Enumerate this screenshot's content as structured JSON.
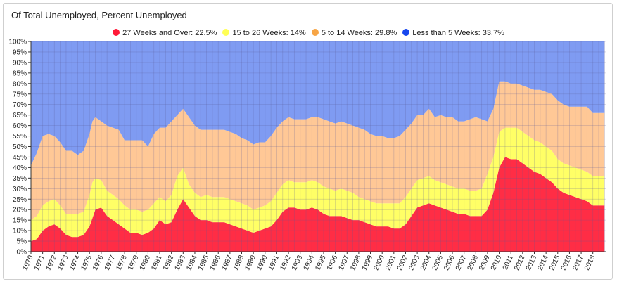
{
  "chart_data": {
    "type": "area",
    "stacked": true,
    "percent_stacked": true,
    "title": "Of Total Unemployed, Percent Unemployed",
    "legend_position": "top-center",
    "grid": true,
    "ylim": [
      0,
      100
    ],
    "y_ticks": [
      "0%",
      "5%",
      "10%",
      "15%",
      "20%",
      "25%",
      "30%",
      "35%",
      "40%",
      "45%",
      "50%",
      "55%",
      "60%",
      "65%",
      "70%",
      "75%",
      "80%",
      "85%",
      "90%",
      "95%",
      "100%"
    ],
    "x_ticks": [
      "1970",
      "1971",
      "1972",
      "1973",
      "1974",
      "1975",
      "1976",
      "1977",
      "1978",
      "1979",
      "1980",
      "1981",
      "1982",
      "1983",
      "1984",
      "1985",
      "1986",
      "1987",
      "1988",
      "1989",
      "1990",
      "1991",
      "1992",
      "1993",
      "1994",
      "1995",
      "1996",
      "1997",
      "1998",
      "1999",
      "2000",
      "2001",
      "2002",
      "2003",
      "2004",
      "2005",
      "2006",
      "2007",
      "2008",
      "2009",
      "2010",
      "2011",
      "2012",
      "2013",
      "2014",
      "2015",
      "2016",
      "2017",
      "2018"
    ],
    "xlim": [
      1970.0,
      2019.1
    ],
    "x": [
      1970.0,
      1970.5,
      1971.0,
      1971.5,
      1972.0,
      1972.5,
      1973.0,
      1973.5,
      1974.0,
      1974.5,
      1975.0,
      1975.25,
      1975.5,
      1976.0,
      1976.5,
      1977.0,
      1977.5,
      1978.0,
      1978.5,
      1979.0,
      1979.5,
      1980.0,
      1980.5,
      1981.0,
      1981.5,
      1982.0,
      1982.5,
      1983.0,
      1983.5,
      1984.0,
      1984.5,
      1985.0,
      1985.5,
      1986.0,
      1986.5,
      1987.0,
      1987.5,
      1988.0,
      1988.5,
      1989.0,
      1989.5,
      1990.0,
      1990.5,
      1991.0,
      1991.5,
      1992.0,
      1992.5,
      1993.0,
      1993.5,
      1994.0,
      1994.5,
      1995.0,
      1995.5,
      1996.0,
      1996.5,
      1997.0,
      1997.5,
      1998.0,
      1998.5,
      1999.0,
      1999.5,
      2000.0,
      2000.5,
      2001.0,
      2001.5,
      2002.0,
      2002.5,
      2003.0,
      2003.5,
      2004.0,
      2004.5,
      2005.0,
      2005.5,
      2006.0,
      2006.5,
      2007.0,
      2007.5,
      2008.0,
      2008.5,
      2009.0,
      2009.5,
      2010.0,
      2010.5,
      2011.0,
      2011.5,
      2012.0,
      2012.5,
      2013.0,
      2013.5,
      2014.0,
      2014.5,
      2015.0,
      2015.5,
      2016.0,
      2016.5,
      2017.0,
      2017.5,
      2018.0,
      2018.5,
      2019.0
    ],
    "series": [
      {
        "name": "27 Weeks and Over",
        "legend_label": "27 Weeks and Over: 22.5%",
        "color": "#ff2d45",
        "values": [
          5,
          6,
          10,
          12,
          13,
          11,
          8,
          7,
          7,
          8,
          12,
          16,
          20,
          21,
          17,
          15,
          13,
          11,
          9,
          9,
          8,
          9,
          11,
          15,
          13,
          14,
          20,
          25,
          21,
          17,
          15,
          15,
          14,
          14,
          14,
          13,
          12,
          11,
          10,
          9,
          10,
          11,
          12,
          15,
          19,
          21,
          21,
          20,
          20,
          21,
          20,
          18,
          17,
          17,
          17,
          16,
          15,
          15,
          14,
          13,
          12,
          12,
          12,
          11,
          11,
          13,
          17,
          21,
          22,
          23,
          22,
          21,
          20,
          19,
          18,
          18,
          17,
          17,
          17,
          20,
          28,
          40,
          45,
          44,
          44,
          42,
          40,
          38,
          37,
          35,
          33,
          30,
          28,
          27,
          26,
          25,
          24,
          22,
          22,
          22
        ]
      },
      {
        "name": "15 to 26 Weeks",
        "legend_label": "15 to 26 Weeks: 14%",
        "color": "#ffff66",
        "values": [
          10,
          11,
          12,
          12,
          12,
          11,
          10,
          11,
          11,
          11,
          15,
          17,
          15,
          13,
          12,
          12,
          12,
          11,
          11,
          11,
          11,
          11,
          12,
          11,
          11,
          13,
          16,
          15,
          11,
          11,
          11,
          12,
          12,
          12,
          12,
          12,
          12,
          12,
          12,
          11,
          11,
          11,
          12,
          13,
          13,
          13,
          12,
          13,
          13,
          13,
          13,
          13,
          13,
          12,
          13,
          13,
          13,
          11,
          11,
          11,
          11,
          11,
          11,
          12,
          12,
          13,
          13,
          13,
          13,
          13,
          12,
          12,
          12,
          12,
          12,
          12,
          12,
          12,
          13,
          17,
          17,
          17,
          14,
          15,
          15,
          15,
          15,
          15,
          15,
          15,
          15,
          14,
          14,
          14,
          14,
          14,
          14,
          14,
          14,
          14
        ]
      },
      {
        "name": "5 to 14 Weeks",
        "legend_label": "5 to 14 Weeks: 29.8%",
        "color": "#ffc896",
        "values": [
          26,
          30,
          33,
          32,
          30,
          30,
          30,
          30,
          28,
          29,
          29,
          29,
          29,
          28,
          31,
          32,
          33,
          31,
          33,
          33,
          34,
          30,
          33,
          33,
          35,
          35,
          29,
          28,
          32,
          32,
          32,
          31,
          32,
          32,
          32,
          32,
          32,
          31,
          31,
          31,
          31,
          30,
          31,
          31,
          30,
          30,
          30,
          30,
          30,
          30,
          31,
          32,
          32,
          32,
          32,
          32,
          32,
          33,
          33,
          32,
          32,
          32,
          31,
          31,
          32,
          32,
          31,
          31,
          30,
          32,
          30,
          32,
          32,
          33,
          32,
          32,
          34,
          35,
          33,
          25,
          23,
          24,
          22,
          21,
          21,
          22,
          23,
          24,
          25,
          26,
          27,
          28,
          28,
          28,
          29,
          30,
          31,
          30,
          30,
          30
        ]
      },
      {
        "name": "Less than 5 Weeks",
        "legend_label": "Less than 5 Weeks: 33.7%",
        "color": "#7f9bf2",
        "values": [
          59,
          53,
          45,
          44,
          45,
          48,
          52,
          52,
          54,
          52,
          44,
          38,
          36,
          38,
          40,
          41,
          42,
          47,
          47,
          47,
          47,
          50,
          44,
          41,
          41,
          38,
          35,
          32,
          36,
          40,
          42,
          42,
          42,
          42,
          42,
          43,
          44,
          46,
          47,
          49,
          48,
          48,
          45,
          41,
          38,
          36,
          37,
          37,
          37,
          36,
          36,
          37,
          38,
          39,
          38,
          39,
          40,
          41,
          42,
          44,
          45,
          45,
          46,
          46,
          45,
          42,
          39,
          35,
          35,
          32,
          36,
          35,
          36,
          36,
          38,
          38,
          37,
          36,
          37,
          38,
          32,
          19,
          19,
          20,
          20,
          21,
          22,
          23,
          23,
          24,
          25,
          28,
          30,
          31,
          31,
          31,
          31,
          34,
          34,
          34
        ]
      }
    ]
  }
}
